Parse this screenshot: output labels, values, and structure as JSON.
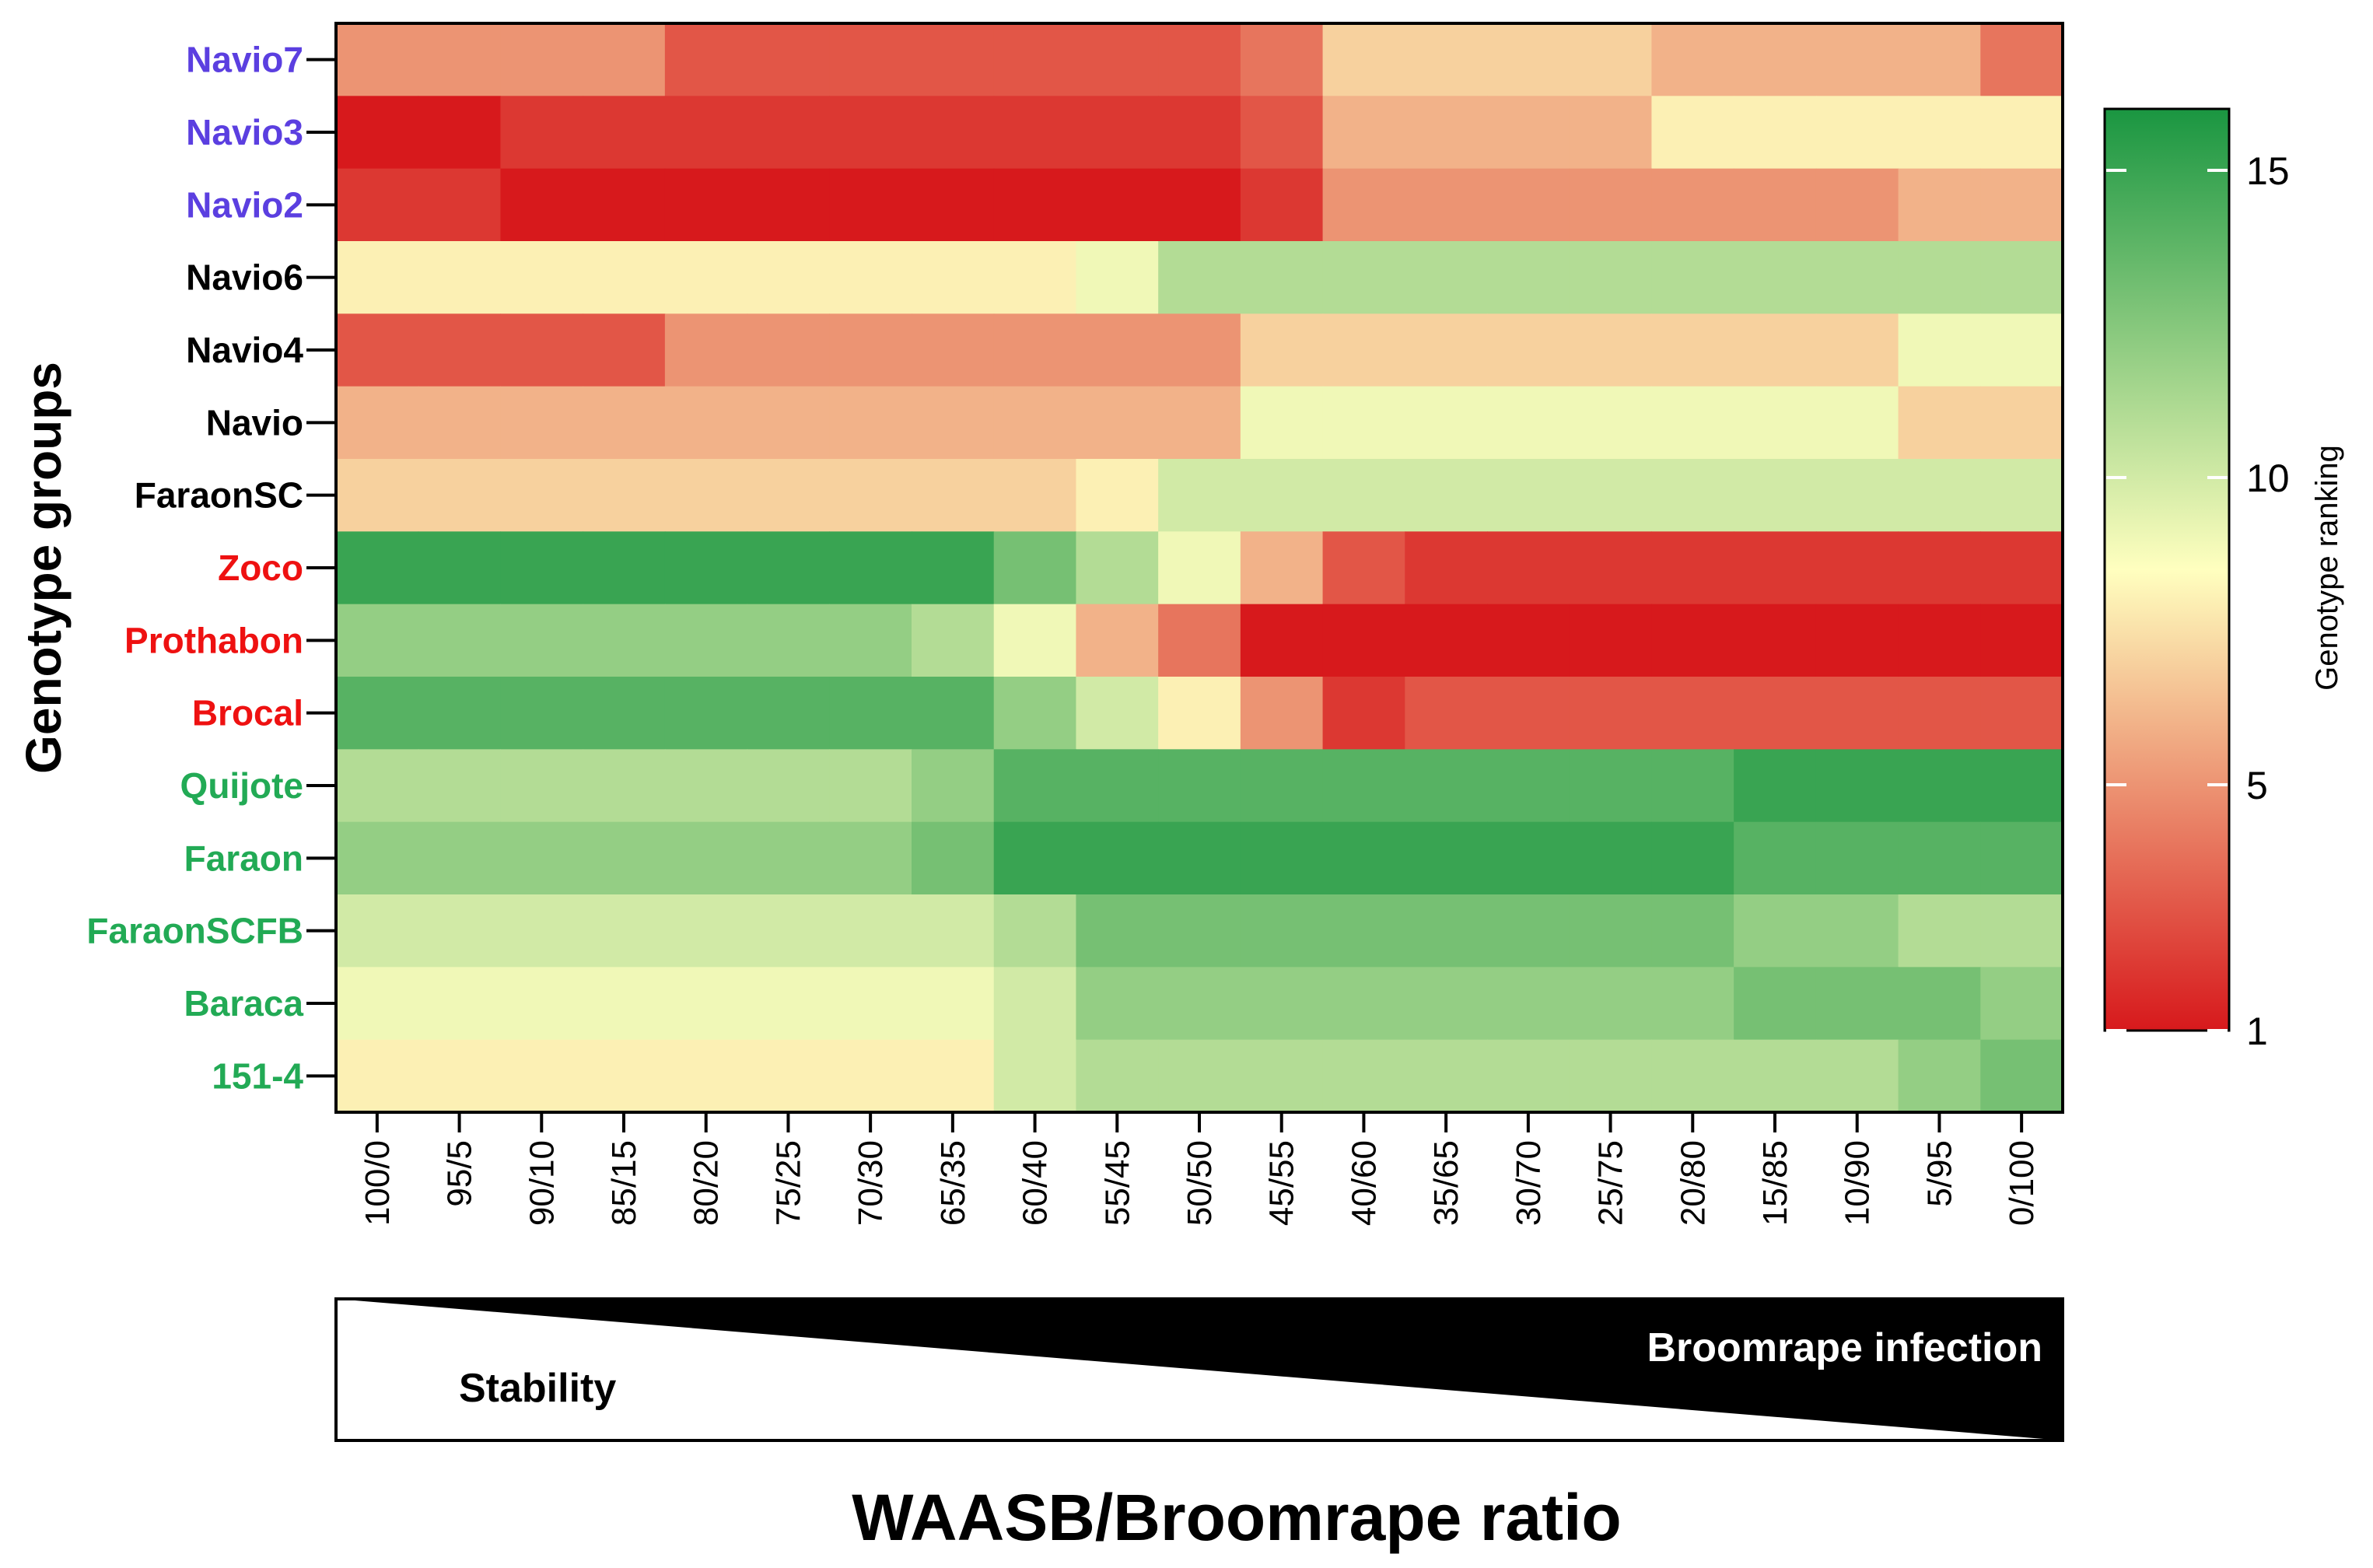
{
  "chart_data": {
    "type": "heatmap",
    "title": "",
    "xlabel": "WAASB/Broomrape ratio",
    "ylabel": "Genotype groups",
    "colorbar": {
      "label": "Genotype ranking",
      "ticks": [
        1,
        5,
        10,
        15
      ],
      "range": [
        1,
        16
      ],
      "colors": {
        "low": "#d7191c",
        "mid": "#ffffbf",
        "high": "#1a9641"
      }
    },
    "categories": [
      "100/0",
      "95/5",
      "90/10",
      "85/15",
      "80/20",
      "75/25",
      "70/30",
      "65/35",
      "60/40",
      "55/45",
      "50/50",
      "45/55",
      "40/60",
      "35/65",
      "30/70",
      "25/75",
      "20/80",
      "15/85",
      "10/90",
      "5/95",
      "0/100"
    ],
    "rows": [
      {
        "name": "Navio7",
        "color": "#5b3fe0",
        "values": [
          5,
          5,
          5,
          5,
          3,
          3,
          3,
          3,
          3,
          3,
          3,
          4,
          7,
          7,
          7,
          7,
          6,
          6,
          6,
          6,
          4
        ]
      },
      {
        "name": "Navio3",
        "color": "#5b3fe0",
        "values": [
          1,
          1,
          2,
          2,
          2,
          2,
          2,
          2,
          2,
          2,
          2,
          3,
          6,
          6,
          6,
          6,
          8,
          8,
          8,
          8,
          8
        ]
      },
      {
        "name": "Navio2",
        "color": "#5b3fe0",
        "values": [
          2,
          2,
          1,
          1,
          1,
          1,
          1,
          1,
          1,
          1,
          1,
          2,
          5,
          5,
          5,
          5,
          5,
          5,
          5,
          6,
          6
        ]
      },
      {
        "name": "Navio6",
        "color": "#000000",
        "values": [
          8,
          8,
          8,
          8,
          8,
          8,
          8,
          8,
          8,
          9,
          11,
          11,
          11,
          11,
          11,
          11,
          11,
          11,
          11,
          11,
          11
        ]
      },
      {
        "name": "Navio4",
        "color": "#000000",
        "values": [
          3,
          3,
          3,
          3,
          5,
          5,
          5,
          5,
          5,
          5,
          5,
          7,
          7,
          7,
          7,
          7,
          7,
          7,
          7,
          9,
          9
        ]
      },
      {
        "name": "Navio",
        "color": "#000000",
        "values": [
          6,
          6,
          6,
          6,
          6,
          6,
          6,
          6,
          6,
          6,
          6,
          9,
          9,
          9,
          9,
          9,
          9,
          9,
          9,
          7,
          7
        ]
      },
      {
        "name": "FaraonSC",
        "color": "#000000",
        "values": [
          7,
          7,
          7,
          7,
          7,
          7,
          7,
          7,
          7,
          8,
          10,
          10,
          10,
          10,
          10,
          10,
          10,
          10,
          10,
          10,
          10
        ]
      },
      {
        "name": "Zoco",
        "color": "#ee1111",
        "values": [
          15,
          15,
          15,
          15,
          15,
          15,
          15,
          15,
          13,
          11,
          9,
          6,
          3,
          2,
          2,
          2,
          2,
          2,
          2,
          2,
          2
        ]
      },
      {
        "name": "Prothabon",
        "color": "#ee1111",
        "values": [
          12,
          12,
          12,
          12,
          12,
          12,
          12,
          11,
          9,
          6,
          4,
          1,
          1,
          1,
          1,
          1,
          1,
          1,
          1,
          1,
          1
        ]
      },
      {
        "name": "Brocal",
        "color": "#ee1111",
        "values": [
          14,
          14,
          14,
          14,
          14,
          14,
          14,
          14,
          12,
          10,
          8,
          5,
          2,
          3,
          3,
          3,
          3,
          3,
          3,
          3,
          3
        ]
      },
      {
        "name": "Quijote",
        "color": "#22aa55",
        "values": [
          11,
          11,
          11,
          11,
          11,
          11,
          11,
          12,
          14,
          14,
          14,
          14,
          14,
          14,
          14,
          14,
          14,
          15,
          15,
          15,
          15
        ]
      },
      {
        "name": "Faraon",
        "color": "#22aa55",
        "values": [
          12,
          12,
          12,
          12,
          12,
          12,
          12,
          13,
          15,
          15,
          15,
          15,
          15,
          15,
          15,
          15,
          15,
          14,
          14,
          14,
          14
        ]
      },
      {
        "name": "FaraonSCFB",
        "color": "#22aa55",
        "values": [
          10,
          10,
          10,
          10,
          10,
          10,
          10,
          10,
          11,
          13,
          13,
          13,
          13,
          13,
          13,
          13,
          13,
          12,
          12,
          11,
          11
        ]
      },
      {
        "name": "Baraca",
        "color": "#22aa55",
        "values": [
          9,
          9,
          9,
          9,
          9,
          9,
          9,
          9,
          10,
          12,
          12,
          12,
          12,
          12,
          12,
          12,
          12,
          13,
          13,
          13,
          12
        ]
      },
      {
        "name": "151-4",
        "color": "#22aa55",
        "values": [
          8,
          8,
          8,
          8,
          8,
          8,
          8,
          8,
          10,
          11,
          11,
          11,
          11,
          11,
          11,
          11,
          11,
          11,
          11,
          12,
          13
        ]
      }
    ],
    "annotations": {
      "stability_label": "Stability",
      "infection_label": "Broomrape infection"
    }
  }
}
